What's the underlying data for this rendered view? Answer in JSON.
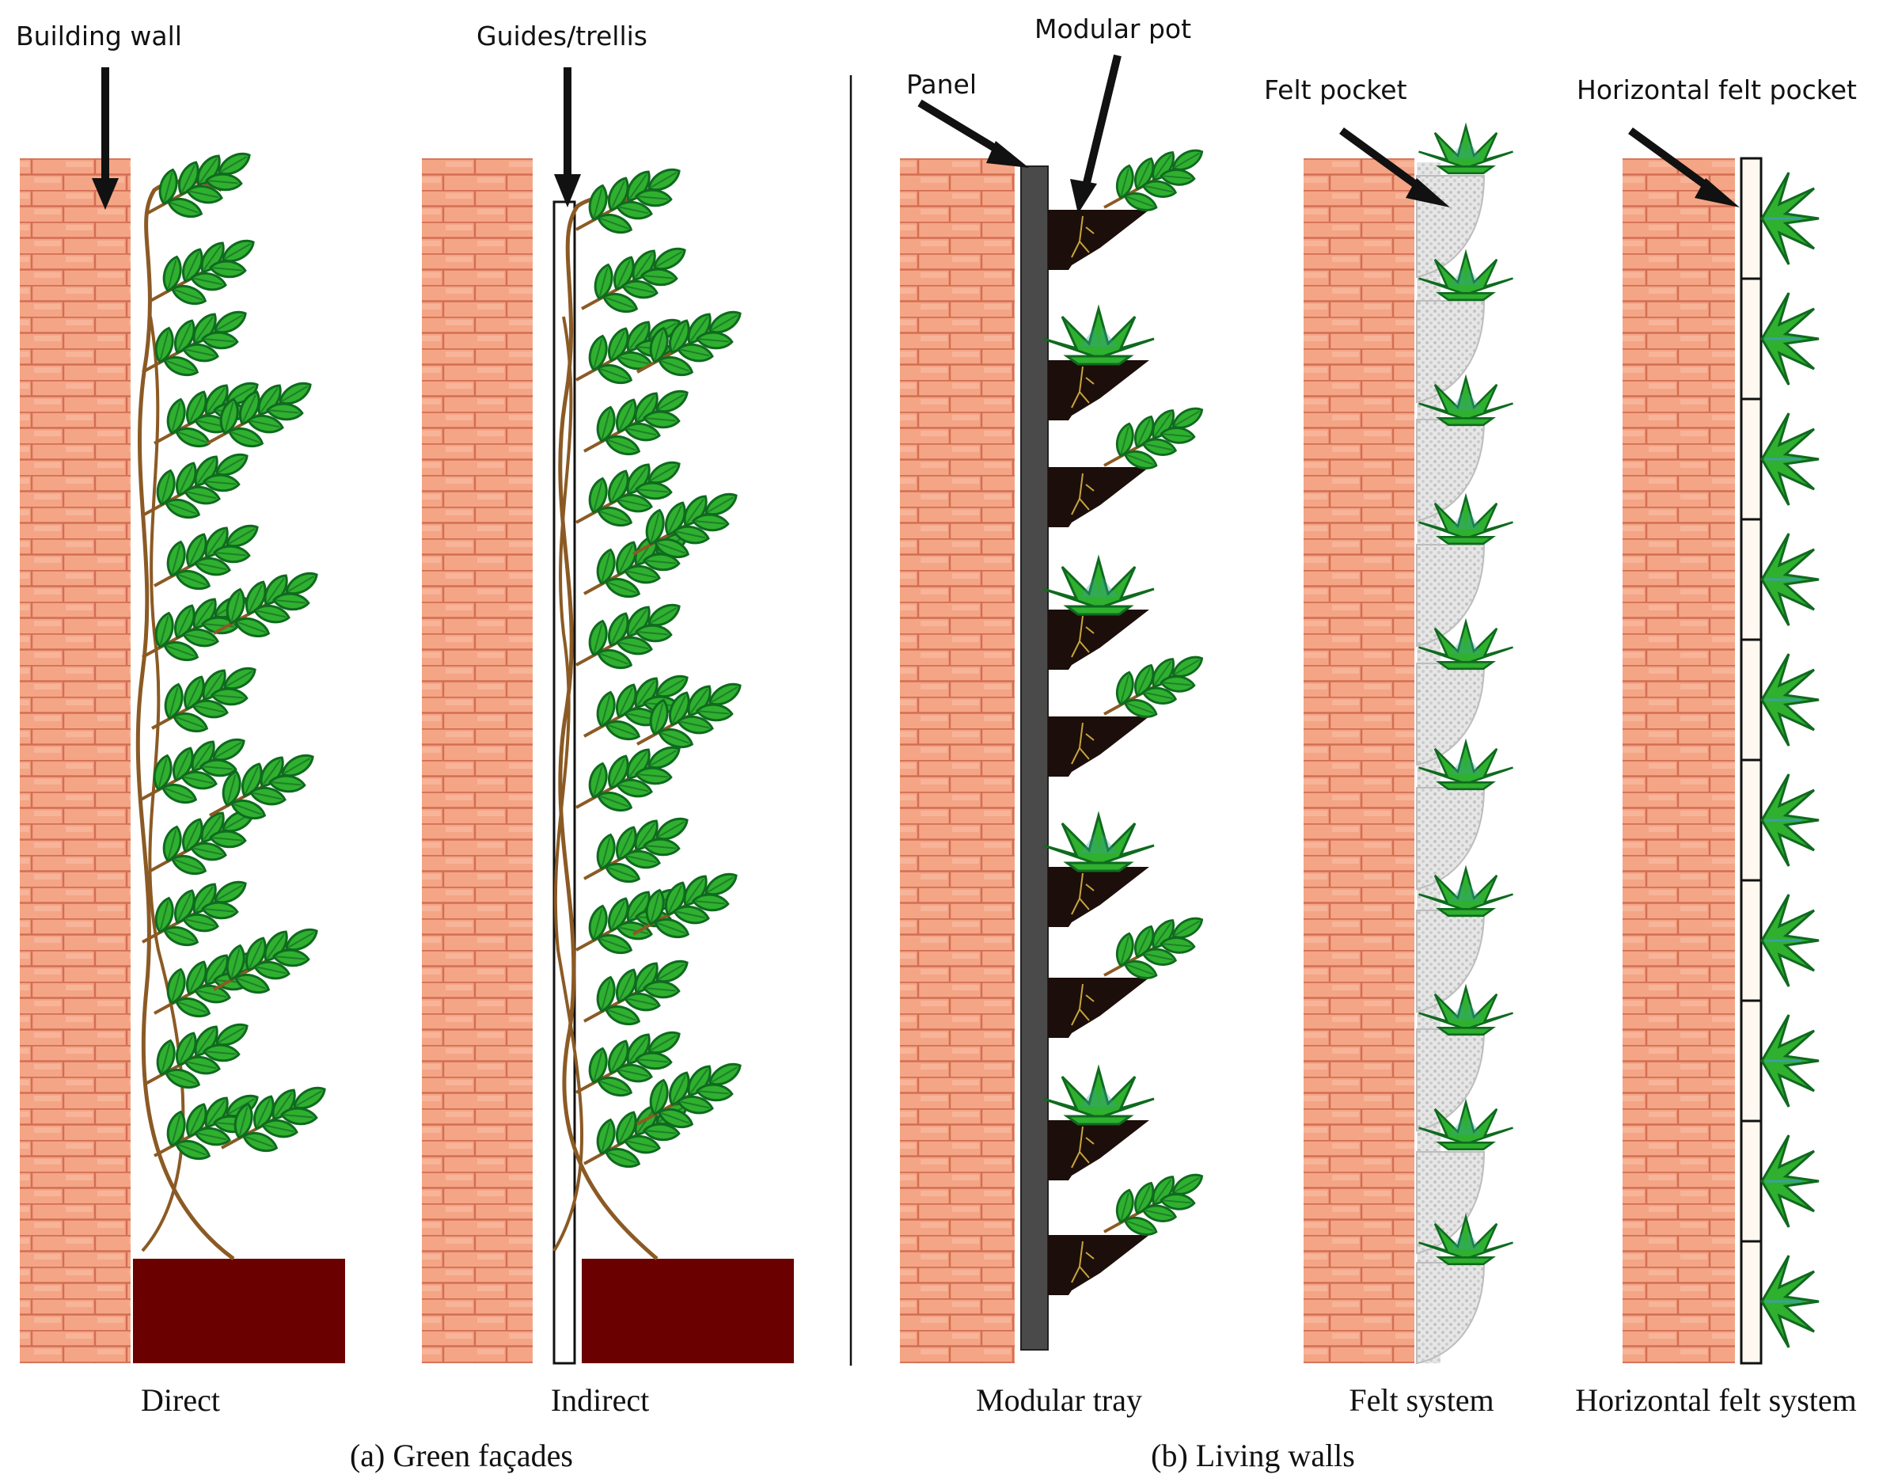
{
  "callouts": {
    "building_wall": "Building wall",
    "guides_trellis": "Guides/trellis",
    "panel": "Panel",
    "modular_pot": "Modular pot",
    "felt_pocket": "Felt pocket",
    "horizontal_felt_pocket": "Horizontal felt pocket"
  },
  "systems": {
    "direct": "Direct",
    "indirect": "Indirect",
    "modular_tray": "Modular tray",
    "felt_system": "Felt system",
    "horizontal_felt_system": "Horizontal felt system"
  },
  "groups": {
    "green_facades": "(a) Green façades",
    "living_walls": "(b) Living walls"
  },
  "colors": {
    "brick": "#f4a585",
    "mortar": "#d36e53",
    "leaf": "#2fb02f",
    "leaf_dark": "#0f6a1f",
    "stem": "#8b5a24",
    "planter": "#6b0000",
    "pot": "#1c0e0a",
    "panel": "#4a4a4a",
    "felt": "#d9d9d9"
  }
}
